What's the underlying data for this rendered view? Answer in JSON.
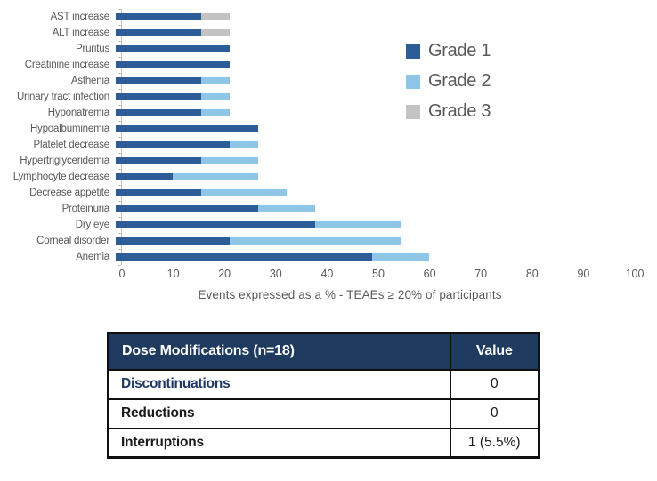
{
  "chart_data": {
    "type": "bar",
    "orientation": "horizontal",
    "stacked": true,
    "title": "",
    "xlabel": "Events expressed as a %  - TEAEs ≥ 20% of participants",
    "ylabel": "",
    "xlim": [
      0,
      100
    ],
    "xticks": [
      0,
      10,
      20,
      30,
      40,
      50,
      60,
      70,
      80,
      90,
      100
    ],
    "grid": false,
    "legend_position": "upper-right",
    "categories": [
      "AST increase",
      "ALT increase",
      "Pruritus",
      "Creatinine increase",
      "Asthenia",
      "Urinary tract infection",
      "Hyponatremia",
      "Hypoalbuminemia",
      "Platelet decrease",
      "Hypertriglyceridemia",
      "Lymphocyte decrease",
      "Decrease appetite",
      "Proteinuria",
      "Dry eye",
      "Corneal disorder",
      "Anemia"
    ],
    "series": [
      {
        "name": "Grade 1",
        "color": "#2e5c97",
        "values": [
          16.7,
          16.7,
          22.2,
          22.2,
          16.7,
          16.7,
          16.7,
          27.8,
          22.2,
          16.7,
          11.1,
          16.7,
          27.8,
          38.9,
          22.2,
          50.0
        ]
      },
      {
        "name": "Grade 2",
        "color": "#8fc6e8",
        "values": [
          0,
          0,
          0,
          0,
          5.6,
          5.6,
          5.6,
          0,
          5.6,
          11.1,
          16.7,
          16.7,
          11.1,
          16.7,
          33.3,
          11.1
        ]
      },
      {
        "name": "Grade 3",
        "color": "#c3c3c3",
        "values": [
          5.6,
          5.6,
          0,
          0,
          0,
          0,
          0,
          0,
          0,
          0,
          0,
          0,
          0,
          0,
          0,
          0
        ]
      }
    ]
  },
  "table": {
    "header": {
      "label": "Dose Modifications (n=18)",
      "value": "Value"
    },
    "rows": [
      {
        "label": "Discontinuations",
        "value": "0",
        "label_color": "#1f3864"
      },
      {
        "label": "Reductions",
        "value": "0",
        "label_color": "#1a1a1a"
      },
      {
        "label": "Interruptions",
        "value": "1 (5.5%)",
        "label_color": "#1a1a1a"
      }
    ],
    "header_bg": "#1e3a5f",
    "header_text_color": "#ffffff"
  },
  "colors": {
    "axis_text": "#595959",
    "axis_line": "#bfbfbf",
    "grade1": "#2e5c97",
    "grade2": "#8fc6e8",
    "grade3": "#c3c3c3"
  }
}
